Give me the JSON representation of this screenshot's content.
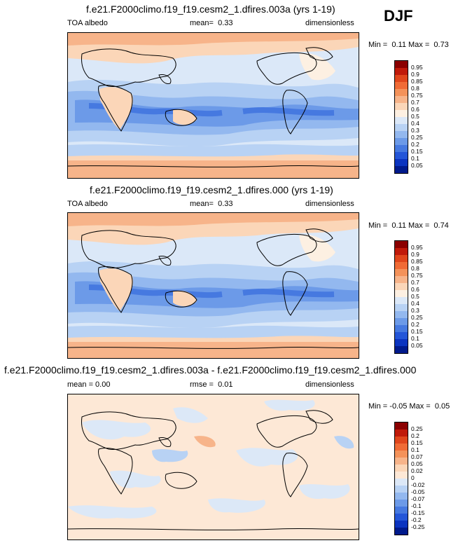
{
  "season": "DJF",
  "panels": [
    {
      "title": "f.e21.F2000climo.f19_f19.cesm2_1.dfires.003a (yrs 1-19)",
      "left": "TOA albedo",
      "mean_label": "mean=",
      "mean_value": "0.33",
      "right": "dimensionless",
      "min_label": "Min =",
      "min_value": "0.11",
      "max_label": "Max =",
      "max_value": "0.73",
      "colorbar": {
        "labels": [
          "0.95",
          "0.9",
          "0.85",
          "0.8",
          "0.75",
          "0.7",
          "0.6",
          "0.5",
          "0.4",
          "0.3",
          "0.25",
          "0.2",
          "0.15",
          "0.1",
          "0.05"
        ],
        "colors": [
          "#8b0000",
          "#c01a0a",
          "#e0461c",
          "#f06b36",
          "#f4925a",
          "#f7b48a",
          "#fbd6b8",
          "#fdf0e2",
          "#dbe8f8",
          "#b8d2f4",
          "#93b8ef",
          "#6c9ae8",
          "#4679e0",
          "#2456d8",
          "#0b34c0",
          "#001a8c"
        ]
      }
    },
    {
      "title": "f.e21.F2000climo.f19_f19.cesm2_1.dfires.000 (yrs 1-19)",
      "left": "TOA albedo",
      "mean_label": "mean=",
      "mean_value": "0.33",
      "right": "dimensionless",
      "min_label": "Min =",
      "min_value": "0.11",
      "max_label": "Max =",
      "max_value": "0.74",
      "colorbar": {
        "labels": [
          "0.95",
          "0.9",
          "0.85",
          "0.8",
          "0.75",
          "0.7",
          "0.6",
          "0.5",
          "0.4",
          "0.3",
          "0.25",
          "0.2",
          "0.15",
          "0.1",
          "0.05"
        ],
        "colors": [
          "#8b0000",
          "#c01a0a",
          "#e0461c",
          "#f06b36",
          "#f4925a",
          "#f7b48a",
          "#fbd6b8",
          "#fdf0e2",
          "#dbe8f8",
          "#b8d2f4",
          "#93b8ef",
          "#6c9ae8",
          "#4679e0",
          "#2456d8",
          "#0b34c0",
          "#001a8c"
        ]
      }
    },
    {
      "title": "f.e21.F2000climo.f19_f19.cesm2_1.dfires.003a - f.e21.F2000climo.f19_f19.cesm2_1.dfires.000",
      "left": "mean =  0.00",
      "mean_label": "rmse =",
      "mean_value": "0.01",
      "right": "dimensionless",
      "min_label": "Min =",
      "min_value": "-0.05",
      "max_label": "Max =",
      "max_value": "0.05",
      "colorbar": {
        "labels": [
          "0.25",
          "0.2",
          "0.15",
          "0.1",
          "0.07",
          "0.05",
          "0.02",
          "0",
          "-0.02",
          "-0.05",
          "-0.07",
          "-0.1",
          "-0.15",
          "-0.2",
          "-0.25"
        ],
        "colors": [
          "#8b0000",
          "#c01a0a",
          "#e0461c",
          "#f06b36",
          "#f4925a",
          "#f7b48a",
          "#fbd6b8",
          "#fde8d6",
          "#dce8f7",
          "#b8d2f4",
          "#93b8ef",
          "#6c9ae8",
          "#4679e0",
          "#2456d8",
          "#0b34c0",
          "#001a8c"
        ]
      }
    }
  ],
  "map_colors": {
    "high": "#f7b48a",
    "light": "#fbd6b8",
    "neutral": "#fdf0e2",
    "pale_blue": "#dbe8f8",
    "blue1": "#b8d2f4",
    "blue2": "#93b8ef",
    "blue3": "#6c9ae8",
    "blue4": "#4679e0",
    "coast": "#000000",
    "diff_pos": "#fde0c8",
    "diff_neg": "#d2e2f6"
  }
}
